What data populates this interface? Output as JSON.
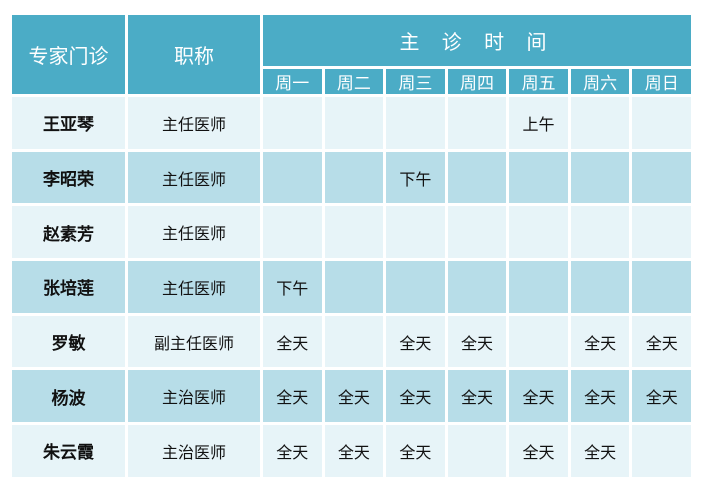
{
  "header": {
    "expert": "专家门诊",
    "title": "职称",
    "time": "主 诊 时 间",
    "days": [
      "周一",
      "周二",
      "周三",
      "周四",
      "周五",
      "周六",
      "周日"
    ]
  },
  "colors": {
    "header": "#4bacc6",
    "row_light": "#e7f4f8",
    "row_dark": "#b7dde8"
  },
  "rows": [
    {
      "name": "王亚琴",
      "title": "主任医师",
      "slots": [
        "",
        "",
        "",
        "",
        "上午",
        "",
        ""
      ]
    },
    {
      "name": "李昭荣",
      "title": "主任医师",
      "slots": [
        "",
        "",
        "下午",
        "",
        "",
        "",
        ""
      ]
    },
    {
      "name": "赵素芳",
      "title": "主任医师",
      "slots": [
        "",
        "",
        "",
        "",
        "",
        "",
        ""
      ]
    },
    {
      "name": "张培莲",
      "title": "主任医师",
      "slots": [
        "下午",
        "",
        "",
        "",
        "",
        "",
        ""
      ]
    },
    {
      "name": "罗敏",
      "title": "副主任医师",
      "slots": [
        "全天",
        "",
        "全天",
        "全天",
        "",
        "全天",
        "全天"
      ]
    },
    {
      "name": "杨波",
      "title": "主治医师",
      "slots": [
        "全天",
        "全天",
        "全天",
        "全天",
        "全天",
        "全天",
        "全天"
      ]
    },
    {
      "name": "朱云霞",
      "title": "主治医师",
      "slots": [
        "全天",
        "全天",
        "全天",
        "",
        "全天",
        "全天",
        ""
      ]
    }
  ]
}
